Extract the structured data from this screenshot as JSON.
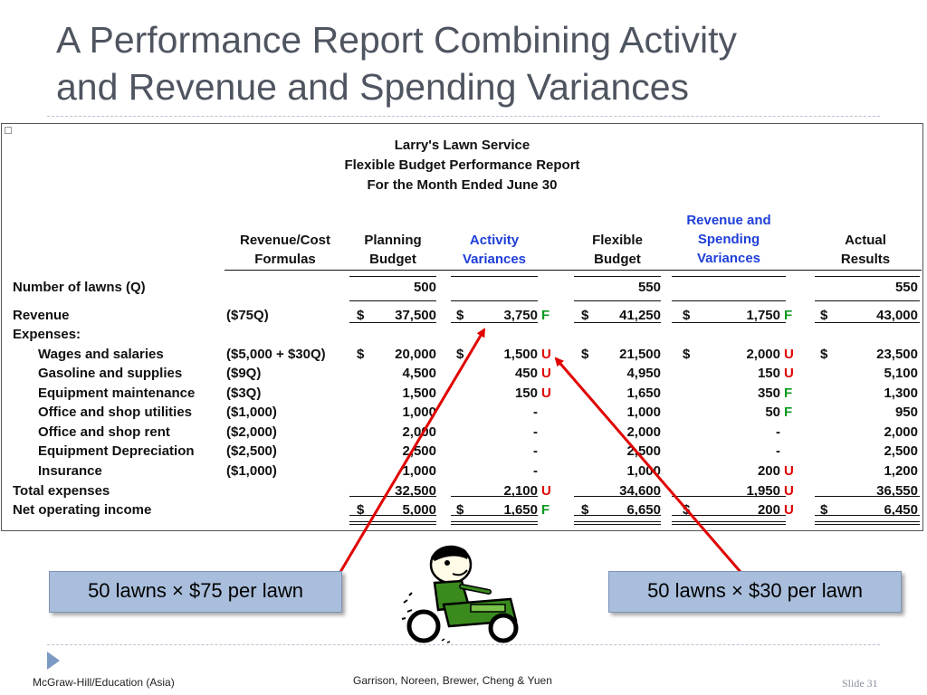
{
  "slide": {
    "title_line1": "A Performance Report Combining Activity",
    "title_line2": "and Revenue and Spending Variances"
  },
  "report": {
    "company": "Larry's Lawn Service",
    "report_name": "Flexible Budget Performance Report",
    "period": "For the Month Ended June 30",
    "columns": {
      "formulas": [
        "Revenue/Cost",
        "Formulas"
      ],
      "planning": [
        "Planning",
        "Budget"
      ],
      "activity": [
        "Activity",
        "Variances"
      ],
      "flexible": [
        "Flexible",
        "Budget"
      ],
      "revspend": [
        "Revenue and",
        "Spending",
        "Variances"
      ],
      "actual": [
        "Actual",
        "Results"
      ]
    },
    "rows": [
      {
        "label": "Number of lawns (Q)",
        "formula": "",
        "planning": "500",
        "activity": "",
        "activity_flag": "",
        "flexible": "550",
        "revspend": "",
        "revspend_flag": "",
        "actual": "550",
        "dollar": false,
        "indent": false
      },
      {
        "label": "Revenue",
        "formula": "($75Q)",
        "planning": "37,500",
        "activity": "3,750",
        "activity_flag": "F",
        "flexible": "41,250",
        "revspend": "1,750",
        "revspend_flag": "F",
        "actual": "43,000",
        "dollar": true,
        "indent": false
      },
      {
        "label": "Expenses:",
        "formula": "",
        "planning": "",
        "activity": "",
        "activity_flag": "",
        "flexible": "",
        "revspend": "",
        "revspend_flag": "",
        "actual": "",
        "dollar": false,
        "indent": false
      },
      {
        "label": "Wages and salaries",
        "formula": "($5,000 + $30Q)",
        "planning": "20,000",
        "activity": "1,500",
        "activity_flag": "U",
        "flexible": "21,500",
        "revspend": "2,000",
        "revspend_flag": "U",
        "actual": "23,500",
        "dollar": true,
        "indent": true
      },
      {
        "label": "Gasoline and supplies",
        "formula": "($9Q)",
        "planning": "4,500",
        "activity": "450",
        "activity_flag": "U",
        "flexible": "4,950",
        "revspend": "150",
        "revspend_flag": "U",
        "actual": "5,100",
        "dollar": false,
        "indent": true
      },
      {
        "label": "Equipment maintenance",
        "formula": "($3Q)",
        "planning": "1,500",
        "activity": "150",
        "activity_flag": "U",
        "flexible": "1,650",
        "revspend": "350",
        "revspend_flag": "F",
        "actual": "1,300",
        "dollar": false,
        "indent": true
      },
      {
        "label": "Office and shop utilities",
        "formula": "($1,000)",
        "planning": "1,000",
        "activity": "-",
        "activity_flag": "",
        "flexible": "1,000",
        "revspend": "50",
        "revspend_flag": "F",
        "actual": "950",
        "dollar": false,
        "indent": true
      },
      {
        "label": "Office and shop rent",
        "formula": "($2,000)",
        "planning": "2,000",
        "activity": "-",
        "activity_flag": "",
        "flexible": "2,000",
        "revspend": "-",
        "revspend_flag": "",
        "actual": "2,000",
        "dollar": false,
        "indent": true
      },
      {
        "label": "Equipment Depreciation",
        "formula": "($2,500)",
        "planning": "2,500",
        "activity": "-",
        "activity_flag": "",
        "flexible": "2,500",
        "revspend": "-",
        "revspend_flag": "",
        "actual": "2,500",
        "dollar": false,
        "indent": true
      },
      {
        "label": "Insurance",
        "formula": "($1,000)",
        "planning": "1,000",
        "activity": "-",
        "activity_flag": "",
        "flexible": "1,000",
        "revspend": "200",
        "revspend_flag": "U",
        "actual": "1,200",
        "dollar": false,
        "indent": true
      },
      {
        "label": "Total expenses",
        "formula": "",
        "planning": "32,500",
        "activity": "2,100",
        "activity_flag": "U",
        "flexible": "34,600",
        "revspend": "1,950",
        "revspend_flag": "U",
        "actual": "36,550",
        "dollar": false,
        "indent": false
      },
      {
        "label": "Net operating income",
        "formula": "",
        "planning": "5,000",
        "activity": "1,650",
        "activity_flag": "F",
        "flexible": "6,650",
        "revspend": "200",
        "revspend_flag": "U",
        "actual": "6,450",
        "dollar": true,
        "indent": false
      }
    ],
    "dollar_sign": "$"
  },
  "callouts": {
    "left": "50 lawns × $75 per lawn",
    "right": "50 lawns × $30 per lawn"
  },
  "footer": {
    "publisher": "McGraw-Hill/Education (Asia)",
    "authors": "Garrison, Noreen, Brewer, Cheng & Yuen",
    "slide_number": "Slide 31"
  },
  "colors": {
    "title": "#4f5560",
    "blue_header": "#1f3fd8",
    "unfavorable": "#e00000",
    "favorable": "#0a9a1e",
    "callout_fill": "#a9bedc",
    "arrow": "#e00000"
  }
}
